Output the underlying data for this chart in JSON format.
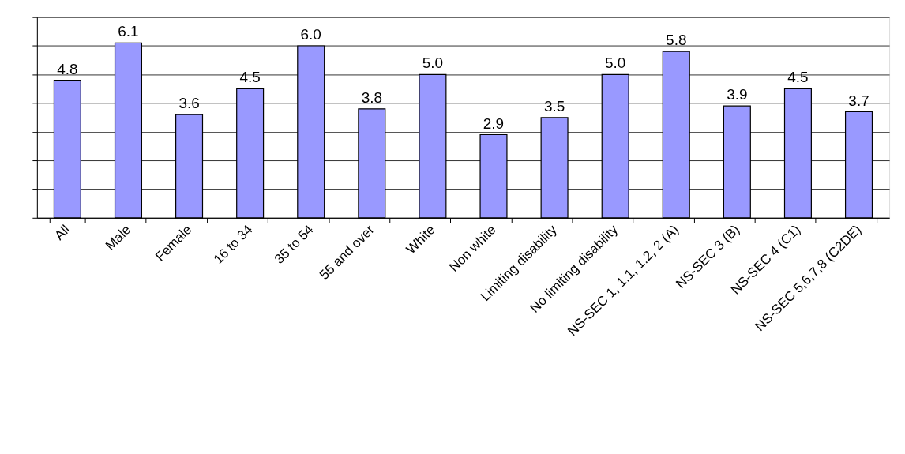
{
  "chart_data": {
    "type": "bar",
    "categories": [
      "All",
      "Male",
      "Female",
      "16 to 34",
      "35 to 54",
      "55 and over",
      "White",
      "Non white",
      "Limiting disability",
      "No limiting disability",
      "NS-SEC 1, 1.1, 1.2, 2 (A)",
      "NS-SEC 3 (B)",
      "NS-SEC 4 (C1)",
      "NS-SEC 5,6,7,8 (C2DE)"
    ],
    "values": [
      4.8,
      6.1,
      3.6,
      4.5,
      6.0,
      3.8,
      5.0,
      2.9,
      3.5,
      5.0,
      5.8,
      3.9,
      4.5,
      3.7
    ],
    "color": "#9999ff",
    "ylim": [
      0,
      7
    ],
    "yticks": [
      {
        "value": 0,
        "label": null
      },
      {
        "value": 1,
        "label": null
      },
      {
        "value": 2,
        "label": null
      },
      {
        "value": 3,
        "label": null
      },
      {
        "value": 4,
        "label": null
      },
      {
        "value": 5,
        "label": null
      },
      {
        "value": 6,
        "label": null
      },
      {
        "value": 7,
        "label": null
      }
    ],
    "value_labels": [
      "4.8",
      "6.1",
      "3.6",
      "4.5",
      "6.0",
      "3.8",
      "5.0",
      "2.9",
      "3.5",
      "5.0",
      "5.8",
      "3.9",
      "4.5",
      "3.7"
    ],
    "grid": "y",
    "tick_labels": "x",
    "legend": false
  }
}
